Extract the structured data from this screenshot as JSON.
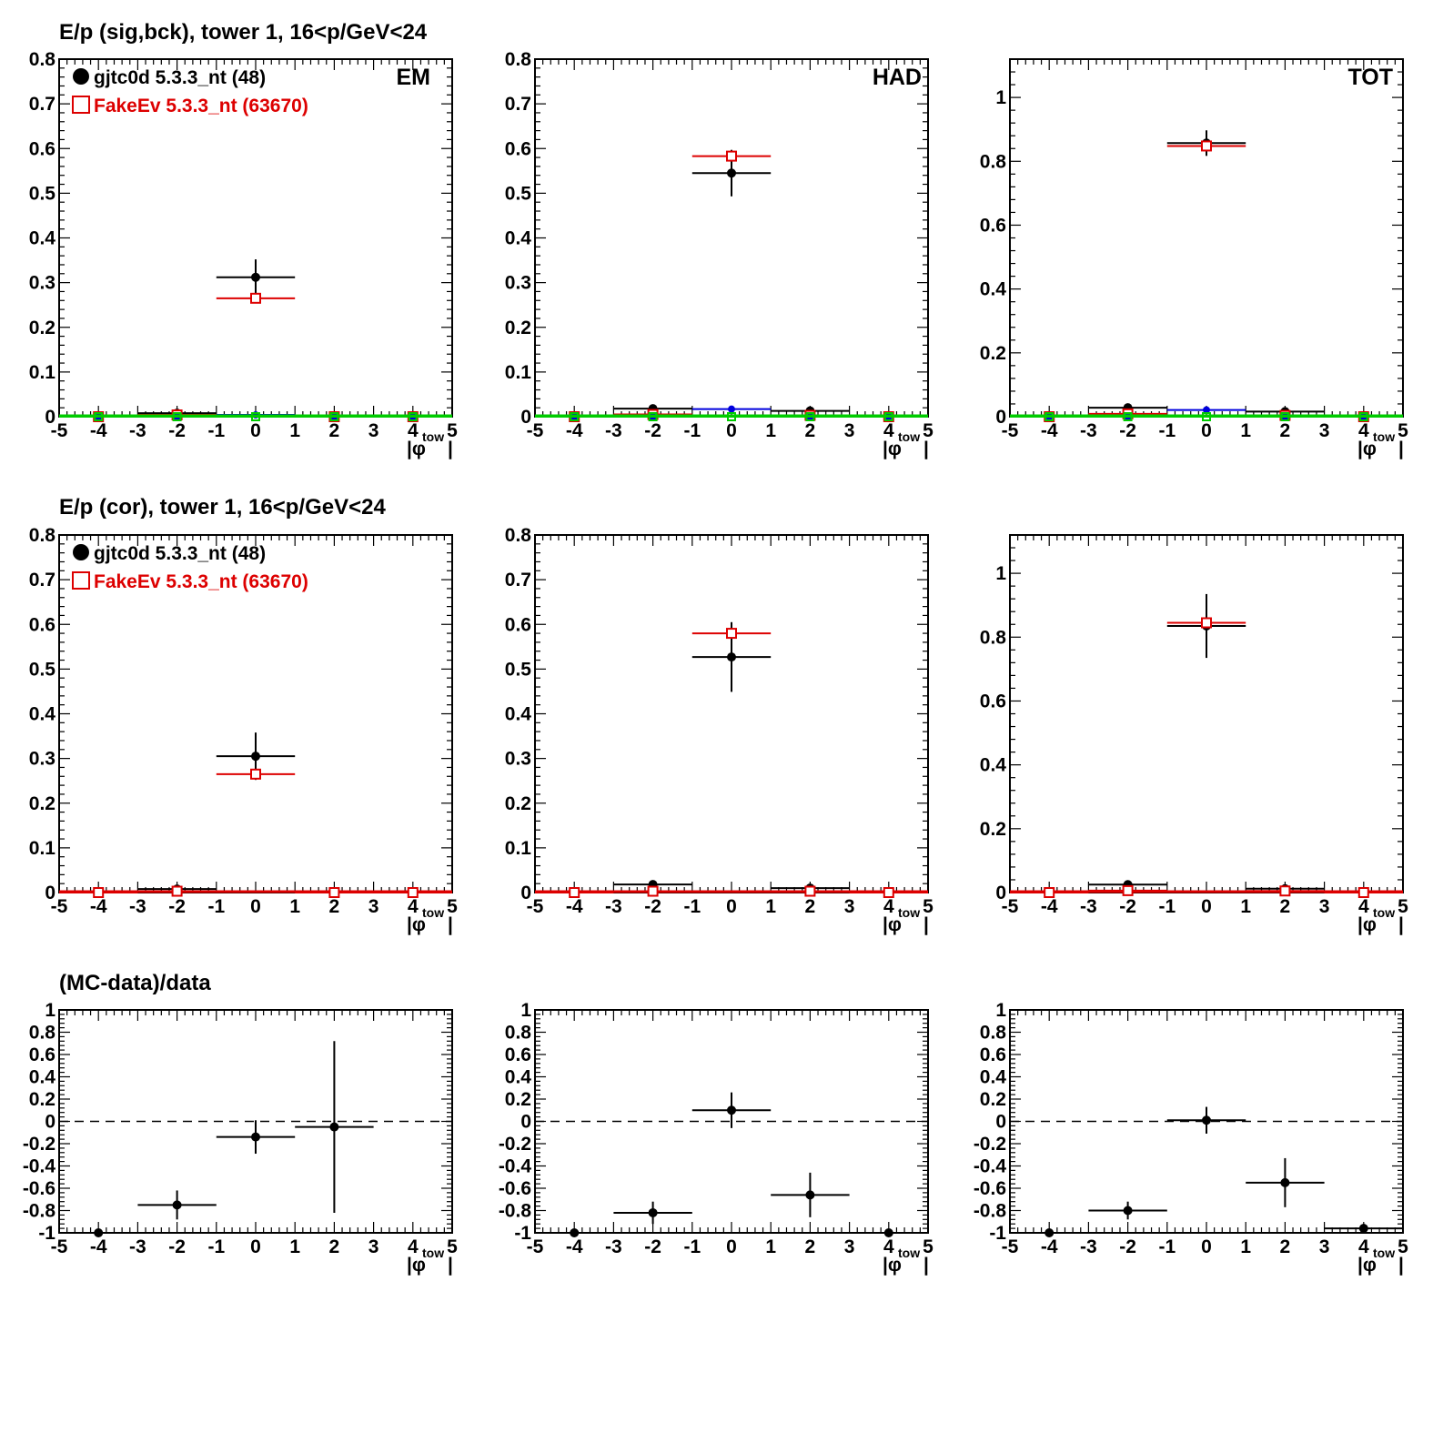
{
  "colors": {
    "data": "#000000",
    "mc": "#dd0000",
    "signal": "#0000dd",
    "background": "#00cc00",
    "frame": "#000000"
  },
  "row_titles": [
    "E/p (sig,bck), tower 1, 16<p/GeV<24",
    "E/p (cor), tower 1, 16<p/GeV<24",
    "(MC-data)/data"
  ],
  "legend": {
    "data_label": "gjtc0d 5.3.3_nt (48)",
    "mc_label": "FakeEv 5.3.3_nt (63670)"
  },
  "panel_tags": [
    "EM",
    "HAD",
    "TOT"
  ],
  "x_axis": {
    "label": "|φ",
    "sub": "tow",
    "close": "|",
    "ticks": [
      "-5",
      "-4",
      "-3",
      "-2",
      "-1",
      "0",
      "1",
      "2",
      "3",
      "4",
      "5"
    ]
  },
  "chart_data": [
    {
      "type": "scatter",
      "row": 0,
      "col": 0,
      "tag": "EM",
      "xlim": [
        -5,
        5
      ],
      "ylim": [
        0,
        0.8
      ],
      "yticks": [
        0,
        0.1,
        0.2,
        0.3,
        0.4,
        0.5,
        0.6,
        0.7,
        0.8
      ],
      "ytick_labels": [
        "0",
        "0.1",
        "0.2",
        "0.3",
        "0.4",
        "0.5",
        "0.6",
        "0.7",
        "0.8"
      ],
      "series": [
        {
          "name": "gjtc0d 5.3.3_nt (48)",
          "color": "#000000",
          "marker": "dot",
          "points": [
            {
              "x": -4,
              "y": 0,
              "err": 0
            },
            {
              "x": -2,
              "y": 0.008,
              "err": 0.004
            },
            {
              "x": 0,
              "y": 0.312,
              "err": 0.04
            },
            {
              "x": 2,
              "y": 0,
              "err": 0
            },
            {
              "x": 4,
              "y": 0,
              "err": 0
            }
          ]
        },
        {
          "name": "FakeEv 5.3.3_nt (63670)",
          "color": "#dd0000",
          "marker": "square",
          "points": [
            {
              "x": -4,
              "y": 0,
              "err": 0
            },
            {
              "x": -2,
              "y": 0.004,
              "err": 0
            },
            {
              "x": 0,
              "y": 0.265,
              "err": 0.003
            },
            {
              "x": 2,
              "y": 0,
              "err": 0
            },
            {
              "x": 4,
              "y": 0,
              "err": 0
            }
          ]
        },
        {
          "color": "#0000dd",
          "marker": "dot-small",
          "points": [
            {
              "x": -4,
              "y": 0,
              "err": 0
            },
            {
              "x": -2,
              "y": 0,
              "err": 0
            },
            {
              "x": 0,
              "y": 0.004,
              "err": 0
            },
            {
              "x": 2,
              "y": 0,
              "err": 0
            },
            {
              "x": 4,
              "y": 0,
              "err": 0
            }
          ]
        },
        {
          "color": "#00cc00",
          "marker": "square-small",
          "baseline": true,
          "points": [
            {
              "x": -4,
              "y": 0,
              "err": 0
            },
            {
              "x": -2,
              "y": 0,
              "err": 0
            },
            {
              "x": 0,
              "y": 0,
              "err": 0
            },
            {
              "x": 2,
              "y": 0,
              "err": 0
            },
            {
              "x": 4,
              "y": 0,
              "err": 0
            }
          ]
        }
      ]
    },
    {
      "type": "scatter",
      "row": 0,
      "col": 1,
      "tag": "HAD",
      "xlim": [
        -5,
        5
      ],
      "ylim": [
        0,
        0.8
      ],
      "yticks": [
        0,
        0.1,
        0.2,
        0.3,
        0.4,
        0.5,
        0.6,
        0.7,
        0.8
      ],
      "ytick_labels": [
        "0",
        "0.1",
        "0.2",
        "0.3",
        "0.4",
        "0.5",
        "0.6",
        "0.7",
        "0.8"
      ],
      "series": [
        {
          "color": "#000000",
          "marker": "dot",
          "points": [
            {
              "x": -4,
              "y": 0,
              "err": 0
            },
            {
              "x": -2,
              "y": 0.018,
              "err": 0.005
            },
            {
              "x": 0,
              "y": 0.545,
              "err": 0.052
            },
            {
              "x": 2,
              "y": 0.013,
              "err": 0.004
            },
            {
              "x": 4,
              "y": 0,
              "err": 0
            }
          ]
        },
        {
          "color": "#dd0000",
          "marker": "square",
          "points": [
            {
              "x": -4,
              "y": 0,
              "err": 0
            },
            {
              "x": -2,
              "y": 0.005,
              "err": 0
            },
            {
              "x": 0,
              "y": 0.583,
              "err": 0.006
            },
            {
              "x": 2,
              "y": 0.003,
              "err": 0
            },
            {
              "x": 4,
              "y": 0,
              "err": 0
            }
          ]
        },
        {
          "color": "#0000dd",
          "marker": "dot-small",
          "points": [
            {
              "x": -4,
              "y": 0,
              "err": 0
            },
            {
              "x": -2,
              "y": 0,
              "err": 0
            },
            {
              "x": 0,
              "y": 0.017,
              "err": 0
            },
            {
              "x": 2,
              "y": 0,
              "err": 0
            },
            {
              "x": 4,
              "y": 0,
              "err": 0
            }
          ]
        },
        {
          "color": "#00cc00",
          "marker": "square-small",
          "baseline": true,
          "points": [
            {
              "x": -4,
              "y": 0,
              "err": 0
            },
            {
              "x": -2,
              "y": 0,
              "err": 0
            },
            {
              "x": 0,
              "y": 0,
              "err": 0
            },
            {
              "x": 2,
              "y": 0,
              "err": 0
            },
            {
              "x": 4,
              "y": 0,
              "err": 0
            }
          ]
        }
      ]
    },
    {
      "type": "scatter",
      "row": 0,
      "col": 2,
      "tag": "TOT",
      "xlim": [
        -5,
        5
      ],
      "ylim": [
        0,
        1.12
      ],
      "yticks": [
        0,
        0.2,
        0.4,
        0.6,
        0.8,
        1
      ],
      "ytick_labels": [
        "0",
        "0.2",
        "0.4",
        "0.6",
        "0.8",
        "1"
      ],
      "series": [
        {
          "color": "#000000",
          "marker": "dot",
          "points": [
            {
              "x": -4,
              "y": 0,
              "err": 0
            },
            {
              "x": -2,
              "y": 0.028,
              "err": 0.006
            },
            {
              "x": 0,
              "y": 0.857,
              "err": 0.04
            },
            {
              "x": 2,
              "y": 0.016,
              "err": 0.004
            },
            {
              "x": 4,
              "y": 0,
              "err": 0
            }
          ]
        },
        {
          "color": "#dd0000",
          "marker": "square",
          "points": [
            {
              "x": -4,
              "y": 0,
              "err": 0
            },
            {
              "x": -2,
              "y": 0.009,
              "err": 0
            },
            {
              "x": 0,
              "y": 0.848,
              "err": 0.007
            },
            {
              "x": 2,
              "y": 0.004,
              "err": 0
            },
            {
              "x": 4,
              "y": 0,
              "err": 0
            }
          ]
        },
        {
          "color": "#0000dd",
          "marker": "dot-small",
          "points": [
            {
              "x": -4,
              "y": 0,
              "err": 0
            },
            {
              "x": -2,
              "y": 0,
              "err": 0
            },
            {
              "x": 0,
              "y": 0.021,
              "err": 0
            },
            {
              "x": 2,
              "y": 0,
              "err": 0
            },
            {
              "x": 4,
              "y": 0,
              "err": 0
            }
          ]
        },
        {
          "color": "#00cc00",
          "marker": "square-small",
          "baseline": true,
          "points": [
            {
              "x": -4,
              "y": 0,
              "err": 0
            },
            {
              "x": -2,
              "y": 0,
              "err": 0
            },
            {
              "x": 0,
              "y": 0,
              "err": 0
            },
            {
              "x": 2,
              "y": 0,
              "err": 0
            },
            {
              "x": 4,
              "y": 0,
              "err": 0
            }
          ]
        }
      ]
    },
    {
      "type": "scatter",
      "row": 1,
      "col": 0,
      "tag": "",
      "xlim": [
        -5,
        5
      ],
      "ylim": [
        0,
        0.8
      ],
      "yticks": [
        0,
        0.1,
        0.2,
        0.3,
        0.4,
        0.5,
        0.6,
        0.7,
        0.8
      ],
      "ytick_labels": [
        "0",
        "0.1",
        "0.2",
        "0.3",
        "0.4",
        "0.5",
        "0.6",
        "0.7",
        "0.8"
      ],
      "series": [
        {
          "name": "gjtc0d 5.3.3_nt (48)",
          "color": "#000000",
          "marker": "dot",
          "points": [
            {
              "x": -4,
              "y": 0,
              "err": 0
            },
            {
              "x": -2,
              "y": 0.008,
              "err": 0.004
            },
            {
              "x": 0,
              "y": 0.305,
              "err": 0.053
            },
            {
              "x": 2,
              "y": 0,
              "err": 0
            },
            {
              "x": 4,
              "y": 0,
              "err": 0
            }
          ]
        },
        {
          "name": "FakeEv 5.3.3_nt (63670)",
          "color": "#dd0000",
          "marker": "square",
          "baseline": true,
          "points": [
            {
              "x": -4,
              "y": 0,
              "err": 0
            },
            {
              "x": -2,
              "y": 0.003,
              "err": 0
            },
            {
              "x": 0,
              "y": 0.265,
              "err": 0.003
            },
            {
              "x": 2,
              "y": 0,
              "err": 0
            },
            {
              "x": 4,
              "y": 0,
              "err": 0
            }
          ]
        }
      ]
    },
    {
      "type": "scatter",
      "row": 1,
      "col": 1,
      "tag": "",
      "xlim": [
        -5,
        5
      ],
      "ylim": [
        0,
        0.8
      ],
      "yticks": [
        0,
        0.1,
        0.2,
        0.3,
        0.4,
        0.5,
        0.6,
        0.7,
        0.8
      ],
      "ytick_labels": [
        "0",
        "0.1",
        "0.2",
        "0.3",
        "0.4",
        "0.5",
        "0.6",
        "0.7",
        "0.8"
      ],
      "series": [
        {
          "color": "#000000",
          "marker": "dot",
          "points": [
            {
              "x": -4,
              "y": 0,
              "err": 0
            },
            {
              "x": -2,
              "y": 0.018,
              "err": 0.005
            },
            {
              "x": 0,
              "y": 0.527,
              "err": 0.078
            },
            {
              "x": 2,
              "y": 0.01,
              "err": 0.006
            },
            {
              "x": 4,
              "y": 0,
              "err": 0
            }
          ]
        },
        {
          "color": "#dd0000",
          "marker": "square",
          "baseline": true,
          "points": [
            {
              "x": -4,
              "y": 0,
              "err": 0
            },
            {
              "x": -2,
              "y": 0.003,
              "err": 0
            },
            {
              "x": 0,
              "y": 0.58,
              "err": 0.008
            },
            {
              "x": 2,
              "y": 0.003,
              "err": 0
            },
            {
              "x": 4,
              "y": 0,
              "err": 0
            }
          ]
        }
      ]
    },
    {
      "type": "scatter",
      "row": 1,
      "col": 2,
      "tag": "",
      "xlim": [
        -5,
        5
      ],
      "ylim": [
        0,
        1.12
      ],
      "yticks": [
        0,
        0.2,
        0.4,
        0.6,
        0.8,
        1
      ],
      "ytick_labels": [
        "0",
        "0.2",
        "0.4",
        "0.6",
        "0.8",
        "1"
      ],
      "series": [
        {
          "color": "#000000",
          "marker": "dot",
          "points": [
            {
              "x": -4,
              "y": 0,
              "err": 0
            },
            {
              "x": -2,
              "y": 0.025,
              "err": 0.006
            },
            {
              "x": 0,
              "y": 0.835,
              "err": 0.1
            },
            {
              "x": 2,
              "y": 0.012,
              "err": 0.006
            },
            {
              "x": 4,
              "y": 0,
              "err": 0
            }
          ]
        },
        {
          "color": "#dd0000",
          "marker": "square",
          "baseline": true,
          "points": [
            {
              "x": -4,
              "y": 0,
              "err": 0
            },
            {
              "x": -2,
              "y": 0.006,
              "err": 0
            },
            {
              "x": 0,
              "y": 0.845,
              "err": 0.008
            },
            {
              "x": 2,
              "y": 0.005,
              "err": 0
            },
            {
              "x": 4,
              "y": 0,
              "err": 0
            }
          ]
        }
      ]
    },
    {
      "type": "scatter",
      "row": 2,
      "col": 0,
      "tag": "",
      "xlim": [
        -5,
        5
      ],
      "ylim": [
        -1,
        1
      ],
      "yticks": [
        -1,
        -0.8,
        -0.6,
        -0.4,
        -0.2,
        0,
        0.2,
        0.4,
        0.6,
        0.8,
        1
      ],
      "ytick_labels": [
        "-1",
        "-0.8",
        "-0.6",
        "-0.4",
        "-0.2",
        "0",
        "0.2",
        "0.4",
        "0.6",
        "0.8",
        "1"
      ],
      "zero_line": true,
      "series": [
        {
          "color": "#000000",
          "marker": "dot",
          "points": [
            {
              "x": -4,
              "y": -1,
              "err": 0
            },
            {
              "x": -2,
              "y": -0.75,
              "err": 0.13
            },
            {
              "x": 0,
              "y": -0.14,
              "err": 0.15
            },
            {
              "x": 2,
              "y": -0.05,
              "err": 0.77
            }
          ]
        }
      ]
    },
    {
      "type": "scatter",
      "row": 2,
      "col": 1,
      "tag": "",
      "xlim": [
        -5,
        5
      ],
      "ylim": [
        -1,
        1
      ],
      "yticks": [
        -1,
        -0.8,
        -0.6,
        -0.4,
        -0.2,
        0,
        0.2,
        0.4,
        0.6,
        0.8,
        1
      ],
      "ytick_labels": [
        "-1",
        "-0.8",
        "-0.6",
        "-0.4",
        "-0.2",
        "0",
        "0.2",
        "0.4",
        "0.6",
        "0.8",
        "1"
      ],
      "zero_line": true,
      "series": [
        {
          "color": "#000000",
          "marker": "dot",
          "points": [
            {
              "x": -4,
              "y": -1,
              "err": 0
            },
            {
              "x": -2,
              "y": -0.82,
              "err": 0.1
            },
            {
              "x": 0,
              "y": 0.1,
              "err": 0.16
            },
            {
              "x": 2,
              "y": -0.66,
              "err": 0.2
            },
            {
              "x": 4,
              "y": -1,
              "err": 0
            }
          ]
        }
      ]
    },
    {
      "type": "scatter",
      "row": 2,
      "col": 2,
      "tag": "",
      "xlim": [
        -5,
        5
      ],
      "ylim": [
        -1,
        1
      ],
      "yticks": [
        -1,
        -0.8,
        -0.6,
        -0.4,
        -0.2,
        0,
        0.2,
        0.4,
        0.6,
        0.8,
        1
      ],
      "ytick_labels": [
        "-1",
        "-0.8",
        "-0.6",
        "-0.4",
        "-0.2",
        "0",
        "0.2",
        "0.4",
        "0.6",
        "0.8",
        "1"
      ],
      "zero_line": true,
      "series": [
        {
          "color": "#000000",
          "marker": "dot",
          "points": [
            {
              "x": -4,
              "y": -1,
              "err": 0
            },
            {
              "x": -2,
              "y": -0.8,
              "err": 0.08
            },
            {
              "x": 0,
              "y": 0.01,
              "err": 0.12
            },
            {
              "x": 2,
              "y": -0.55,
              "err": 0.22
            },
            {
              "x": 4,
              "y": -0.96,
              "err": 0.04
            }
          ]
        }
      ]
    }
  ]
}
